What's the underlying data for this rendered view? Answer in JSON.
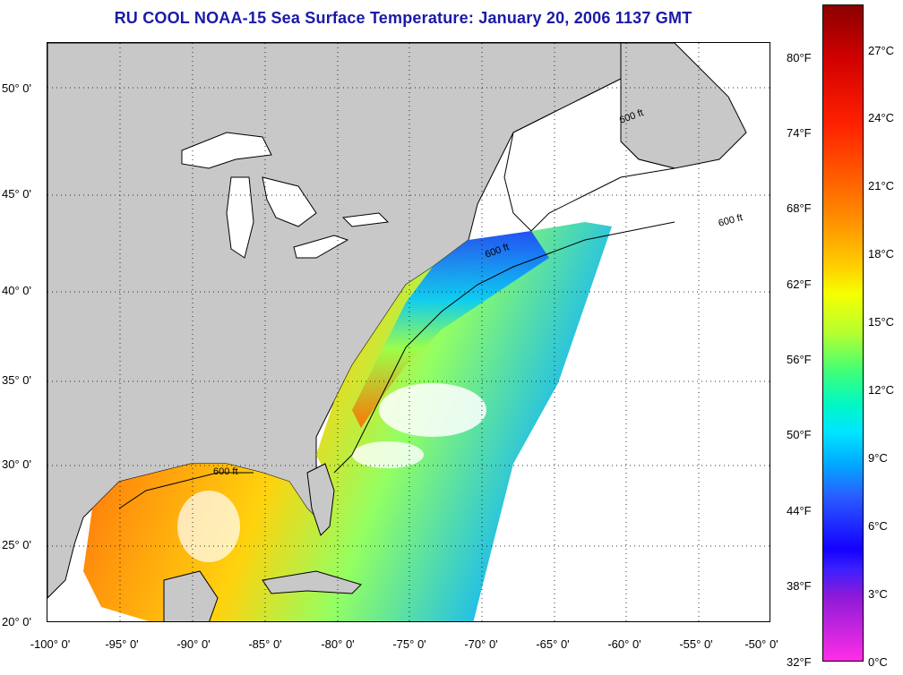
{
  "title": "RU COOL  NOAA-15  Sea Surface Temperature:  January 20, 2006 1137 GMT",
  "axes": {
    "y_labels": [
      "50° 0'",
      "45° 0'",
      "40° 0'",
      "35° 0'",
      "30° 0'",
      "25° 0'",
      "20° 0'"
    ],
    "x_labels": [
      "-100° 0'",
      "-95° 0'",
      "-90° 0'",
      "-85° 0'",
      "-80° 0'",
      "-75° 0'",
      "-70° 0'",
      "-65° 0'",
      "-60° 0'",
      "-55° 0'",
      "-50° 0'"
    ],
    "lat_range": [
      20,
      52.5
    ],
    "lon_range": [
      -100,
      -50
    ]
  },
  "contour_label": "600 ft",
  "colorbar": {
    "fahrenheit": [
      "80°F",
      "74°F",
      "68°F",
      "62°F",
      "56°F",
      "50°F",
      "44°F",
      "38°F",
      "32°F"
    ],
    "celsius": [
      "27°C",
      "24°C",
      "21°C",
      "18°C",
      "15°C",
      "12°C",
      "9°C",
      "6°C",
      "3°C",
      "0°C"
    ]
  },
  "colors": {
    "land": "#c8c8c8",
    "water_nodata": "#ffffff",
    "title": "#1a1aa8"
  }
}
